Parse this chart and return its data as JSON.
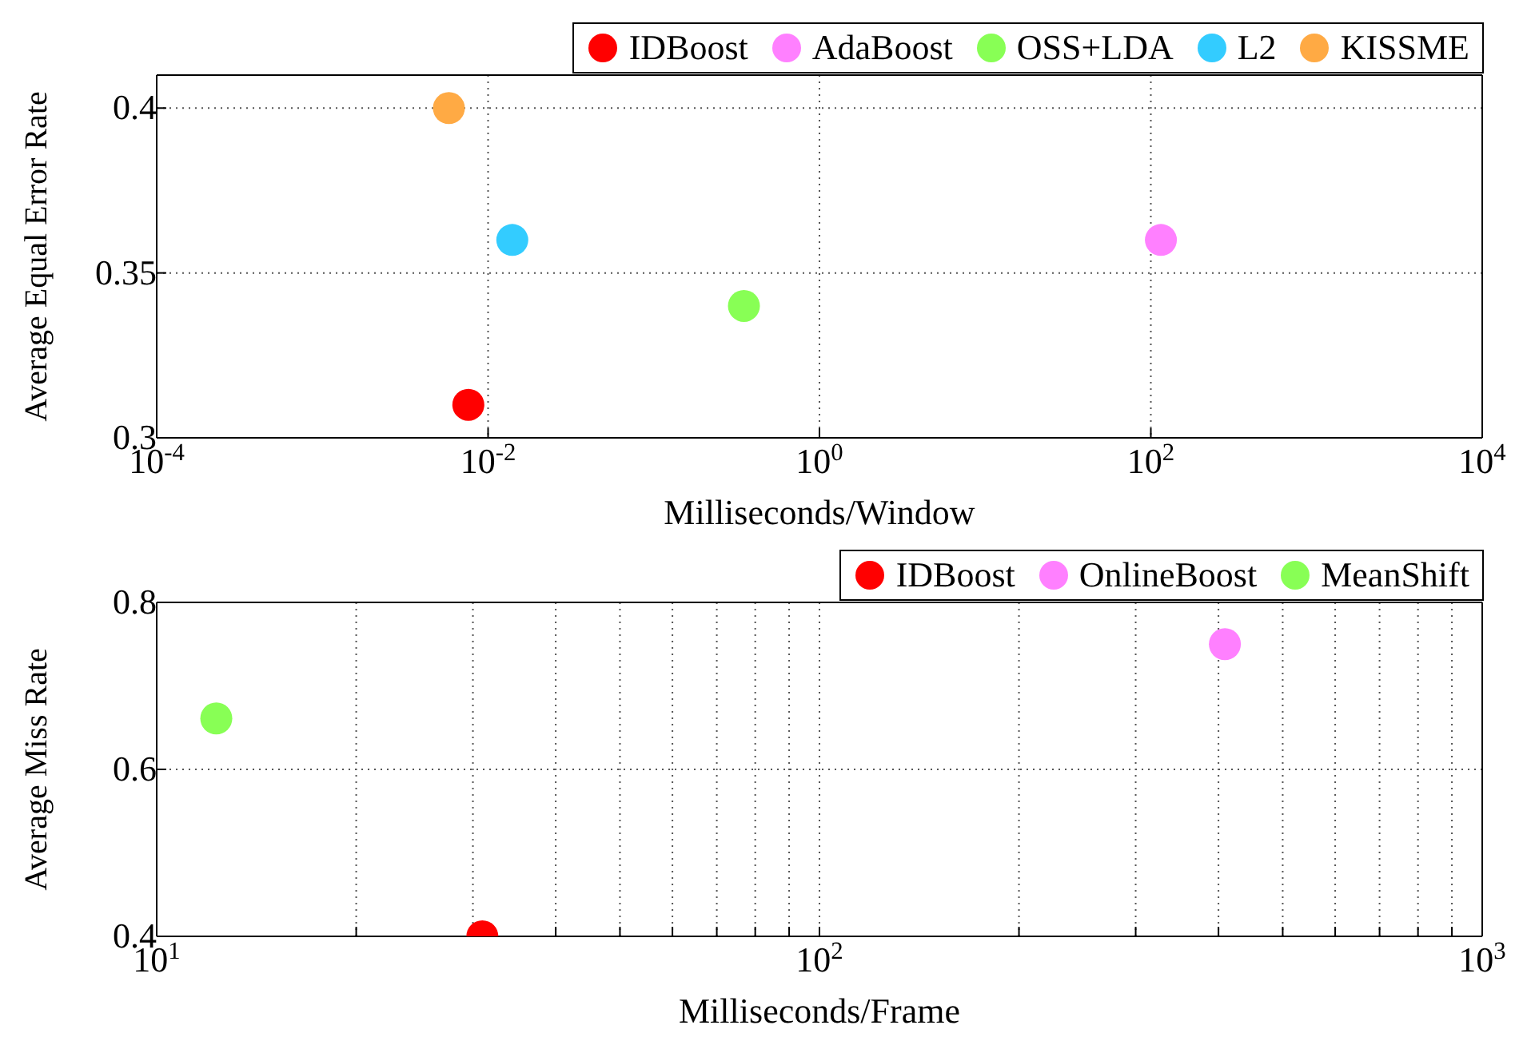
{
  "chart_data": [
    {
      "type": "scatter",
      "xlabel": "Milliseconds/Window",
      "ylabel": "Average Equal Error Rate",
      "log": "x",
      "grid": true,
      "legend": "top right",
      "marker": "circle",
      "xlim": [
        0.0001,
        10000
      ],
      "xticks": [
        {
          "value": 0.0001,
          "label": "10$^{-4}$"
        },
        {
          "value": 0.01,
          "label": "10$^{-2}$"
        },
        {
          "value": 1,
          "label": "10$^{0}$"
        },
        {
          "value": 100,
          "label": "10$^{2}$"
        },
        {
          "value": 10000,
          "label": "10$^{4}$"
        }
      ],
      "ylim": [
        0.3,
        0.41
      ],
      "yticks": [
        0.3,
        0.35,
        0.4
      ],
      "series": [
        {
          "name": "IDBoost",
          "color": "#ff0000",
          "x": [
            0.0076
          ],
          "values": [
            0.31
          ]
        },
        {
          "name": "AdaBoost",
          "color": "#ff80ff",
          "x": [
            115
          ],
          "values": [
            0.36
          ]
        },
        {
          "name": "OSS+LDA",
          "color": "#88ff55",
          "x": [
            0.35
          ],
          "values": [
            0.34
          ]
        },
        {
          "name": "L2",
          "color": "#33ccff",
          "x": [
            0.014
          ],
          "values": [
            0.36
          ]
        },
        {
          "name": "KISSME",
          "color": "#ffaa44",
          "x": [
            0.0058
          ],
          "values": [
            0.4
          ]
        }
      ]
    },
    {
      "type": "scatter",
      "xlabel": "Milliseconds/Frame",
      "ylabel": "Average Miss Rate",
      "log": "x",
      "grid": true,
      "legend": "top right",
      "marker": "circle",
      "xlim": [
        10,
        1000
      ],
      "xticks": [
        {
          "value": 10,
          "label": "10$^{1}$"
        },
        {
          "value": 20,
          "label": null
        },
        {
          "value": 30,
          "label": null
        },
        {
          "value": 40,
          "label": null
        },
        {
          "value": 50,
          "label": null
        },
        {
          "value": 60,
          "label": null
        },
        {
          "value": 70,
          "label": null
        },
        {
          "value": 80,
          "label": null
        },
        {
          "value": 90,
          "label": null
        },
        {
          "value": 100,
          "label": "10$^{2}$"
        },
        {
          "value": 200,
          "label": null
        },
        {
          "value": 300,
          "label": null
        },
        {
          "value": 400,
          "label": null
        },
        {
          "value": 500,
          "label": null
        },
        {
          "value": 600,
          "label": null
        },
        {
          "value": 700,
          "label": null
        },
        {
          "value": 800,
          "label": null
        },
        {
          "value": 900,
          "label": null
        },
        {
          "value": 1000,
          "label": "10$^{3}$"
        }
      ],
      "ylim": [
        0.4,
        0.8
      ],
      "yticks": [
        0.4,
        0.6,
        0.8
      ],
      "series": [
        {
          "name": "IDBoost",
          "color": "#ff0000",
          "x": [
            31
          ],
          "values": [
            0.4
          ]
        },
        {
          "name": "OnlineBoost",
          "color": "#ff80ff",
          "x": [
            409
          ],
          "values": [
            0.75
          ]
        },
        {
          "name": "MeanShift",
          "color": "#88ff55",
          "x": [
            12.3
          ],
          "values": [
            0.661
          ]
        }
      ]
    }
  ]
}
